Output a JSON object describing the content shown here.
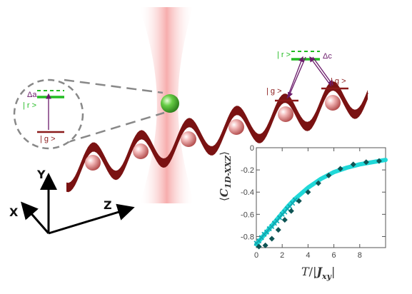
{
  "colors": {
    "lattice": "#7a1212",
    "lattice_light": "#a33030",
    "beam": "#f07070",
    "level_ground": "#8b1a1a",
    "level_rydberg": "#22bb22",
    "transition": "#6a1a6a",
    "curve": "#20d8d8",
    "markers": "#0e5454",
    "green_atom": "#3ca83c"
  },
  "inset_left": {
    "delta_label": "Δa",
    "rydberg_label": "| r >",
    "ground_label": "| g >"
  },
  "inset_right": {
    "delta_label": "Δc",
    "rydberg_label": "| r >",
    "ground_left_label": "| g >",
    "ground_right_label": "| g >"
  },
  "axes3d": {
    "x": "X",
    "y": "Y",
    "z": "Z"
  },
  "chart_data": {
    "type": "scatter",
    "xlabel_T": "T",
    "xlabel_J": "J",
    "xlabel_J_sub": "xy",
    "ylabel_main": "C",
    "ylabel_sub": "1D-XXZ",
    "xlim": [
      0,
      10
    ],
    "ylim": [
      -0.9,
      0
    ],
    "x_ticks": [
      "0",
      "2",
      "4",
      "6",
      "8"
    ],
    "y_ticks": [
      "0",
      "-0.2",
      "-0.4",
      "-0.6",
      "-0.8"
    ],
    "series": [
      {
        "marker": "line",
        "x": [
          0.0,
          0.5,
          1.0,
          1.5,
          2.0,
          2.5,
          3.0,
          3.5,
          4.0,
          5.0,
          6.0,
          7.0,
          8.0,
          9.0,
          10.0
        ],
        "y": [
          -0.87,
          -0.8,
          -0.73,
          -0.66,
          -0.59,
          -0.52,
          -0.46,
          -0.41,
          -0.36,
          -0.28,
          -0.22,
          -0.18,
          -0.15,
          -0.13,
          -0.11
        ]
      },
      {
        "marker": "x",
        "x": [
          0.0,
          0.2,
          0.4,
          0.6,
          0.8,
          1.0,
          1.2,
          1.4,
          1.6,
          1.8,
          2.0,
          2.2,
          2.4,
          2.6,
          2.8,
          3.0
        ],
        "y": [
          -0.86,
          -0.84,
          -0.81,
          -0.78,
          -0.76,
          -0.73,
          -0.71,
          -0.68,
          -0.66,
          -0.63,
          -0.6,
          -0.58,
          -0.55,
          -0.53,
          -0.5,
          -0.47
        ]
      },
      {
        "marker": "diamond",
        "x": [
          0.2,
          0.7,
          1.2,
          1.7,
          2.2,
          2.7,
          3.3,
          4.0,
          4.8,
          5.6,
          6.5,
          7.5,
          8.5,
          9.5
        ],
        "y": [
          -0.89,
          -0.88,
          -0.82,
          -0.74,
          -0.65,
          -0.57,
          -0.48,
          -0.4,
          -0.32,
          -0.25,
          -0.19,
          -0.15,
          -0.13,
          -0.12
        ]
      }
    ]
  }
}
